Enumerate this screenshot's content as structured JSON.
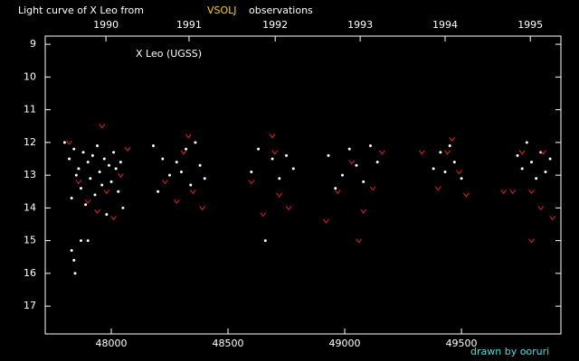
{
  "chart_data": {
    "type": "scatter",
    "title": "Light curve of X Leo from",
    "title_highlight": "VSOLJ",
    "title_tail": "observations",
    "annotation": "X Leo (UGSS)",
    "credit": "drawn by ooruri",
    "xlim": [
      47717,
      49926
    ],
    "ylim": [
      8.75,
      17.85
    ],
    "y_reversed": true,
    "xticks": [
      48000,
      48500,
      49000,
      49500
    ],
    "yticks": [
      9,
      10,
      11,
      12,
      13,
      14,
      15,
      16,
      17
    ],
    "x2ticks": [
      {
        "value": 47977,
        "label": "1990"
      },
      {
        "value": 48333,
        "label": "1991"
      },
      {
        "value": 48702,
        "label": "1992"
      },
      {
        "value": 49066,
        "label": "1993"
      },
      {
        "value": 49430,
        "label": "1994"
      },
      {
        "value": 49795,
        "label": "1995"
      }
    ],
    "series": [
      {
        "color": "#ffffff",
        "marker": "dot",
        "x": [
          47800,
          47820,
          47830,
          47840,
          47850,
          47860,
          47870,
          47880,
          47890,
          47900,
          47910,
          47920,
          47930,
          47940,
          47950,
          47960,
          47970,
          47980,
          47990,
          48000,
          48010,
          48020,
          48030,
          48040,
          48050,
          47830,
          47840,
          47845,
          47870,
          47900,
          48180,
          48200,
          48220,
          48250,
          48280,
          48300,
          48320,
          48340,
          48360,
          48380,
          48400,
          48600,
          48630,
          48660,
          48690,
          48720,
          48750,
          48780,
          48930,
          48960,
          48990,
          49020,
          49050,
          49080,
          49110,
          49140,
          49380,
          49410,
          49430,
          49450,
          49470,
          49500,
          49740,
          49760,
          49780,
          49800,
          49820,
          49840,
          49860,
          49880
        ],
        "values": [
          12.0,
          12.5,
          13.7,
          12.2,
          13.0,
          12.8,
          13.4,
          12.3,
          13.9,
          12.6,
          13.1,
          12.4,
          13.6,
          12.1,
          12.9,
          13.3,
          12.5,
          14.2,
          12.7,
          13.2,
          12.3,
          12.8,
          13.5,
          12.6,
          14.0,
          15.3,
          15.6,
          16.0,
          15.0,
          15.0,
          12.1,
          13.5,
          12.5,
          13.0,
          12.6,
          12.9,
          12.2,
          13.3,
          12.0,
          12.7,
          13.1,
          12.9,
          12.2,
          15.0,
          12.5,
          13.1,
          12.4,
          12.8,
          12.4,
          13.4,
          13.0,
          12.2,
          12.7,
          13.2,
          12.1,
          12.6,
          12.8,
          12.3,
          12.9,
          12.1,
          12.6,
          13.1,
          12.4,
          12.8,
          12.0,
          12.6,
          13.1,
          12.3,
          12.9,
          12.5
        ]
      },
      {
        "color": "#e02020",
        "marker": "v",
        "x": [
          47820,
          47860,
          47900,
          47940,
          47980,
          48010,
          48040,
          48070,
          47960,
          48230,
          48280,
          48310,
          48350,
          48390,
          48330,
          48600,
          48650,
          48690,
          48720,
          48760,
          48700,
          48920,
          48970,
          49030,
          49080,
          49120,
          49160,
          49060,
          49330,
          49400,
          49440,
          49490,
          49520,
          49460,
          49680,
          49720,
          49760,
          49800,
          49840,
          49850,
          49800,
          49890
        ],
        "values": [
          12.0,
          13.2,
          13.8,
          14.1,
          13.5,
          14.3,
          13.0,
          12.2,
          11.5,
          13.2,
          13.8,
          12.3,
          13.5,
          14.0,
          11.8,
          13.2,
          14.2,
          11.8,
          13.6,
          14.0,
          12.3,
          14.4,
          13.5,
          12.6,
          14.1,
          13.4,
          12.3,
          15.0,
          12.3,
          13.4,
          12.3,
          12.9,
          13.6,
          11.9,
          13.5,
          13.5,
          12.3,
          13.5,
          14.0,
          12.3,
          15.0,
          14.3
        ]
      }
    ]
  }
}
